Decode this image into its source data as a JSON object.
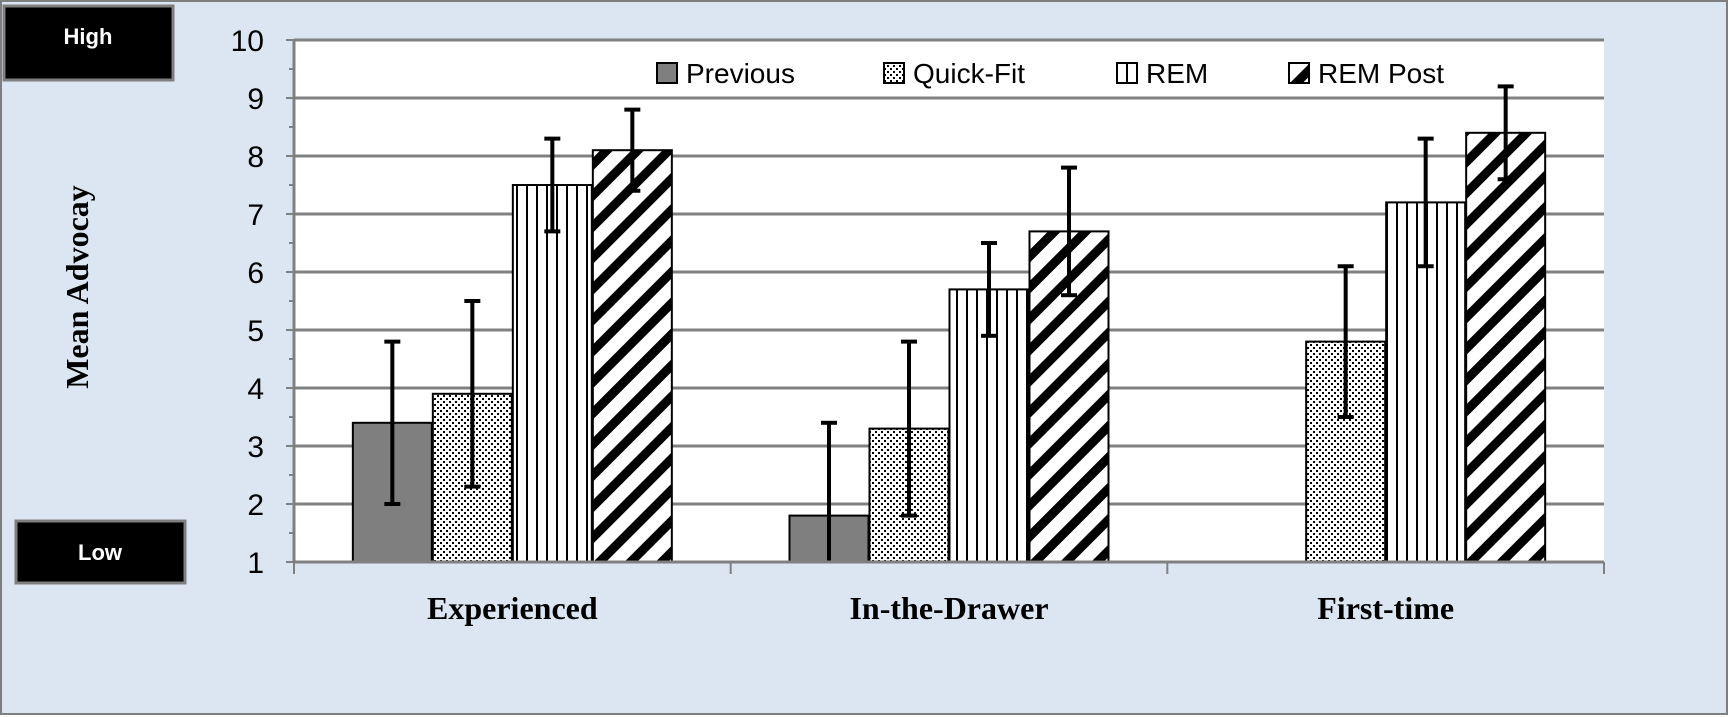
{
  "markers": {
    "high": "High",
    "low": "Low"
  },
  "chart_data": {
    "type": "bar",
    "title": "",
    "xlabel": "",
    "ylabel": "Mean Advocay",
    "ylim": [
      1,
      10
    ],
    "yticks": [
      1,
      2,
      3,
      4,
      5,
      6,
      7,
      8,
      9,
      10
    ],
    "grid": true,
    "legend_position": "top",
    "categories": [
      "Experienced",
      "In-the-Drawer",
      "First-time"
    ],
    "series": [
      {
        "name": "Previous",
        "pattern": "solid-gray",
        "values": [
          3.4,
          1.8,
          null
        ],
        "error_low": [
          2.0,
          1.0,
          null
        ],
        "error_high": [
          4.8,
          3.4,
          null
        ]
      },
      {
        "name": "Quick-Fit",
        "pattern": "dotted",
        "values": [
          3.9,
          3.3,
          4.8
        ],
        "error_low": [
          2.3,
          1.8,
          3.5
        ],
        "error_high": [
          5.5,
          4.8,
          6.1
        ]
      },
      {
        "name": "REM",
        "pattern": "vertical-lines",
        "values": [
          7.5,
          5.7,
          7.2
        ],
        "error_low": [
          6.7,
          4.9,
          6.1
        ],
        "error_high": [
          8.3,
          6.5,
          8.3
        ]
      },
      {
        "name": "REM Post",
        "pattern": "diagonal-stripes",
        "values": [
          8.1,
          6.7,
          8.4
        ],
        "error_low": [
          7.4,
          5.6,
          7.6
        ],
        "error_high": [
          8.8,
          7.8,
          9.2
        ]
      }
    ],
    "colors": {
      "background": "#dce6f2",
      "plot": "#ffffff",
      "grid": "#808080",
      "bar_gray": "#7f7f7f",
      "marker_box": "#000000"
    }
  }
}
